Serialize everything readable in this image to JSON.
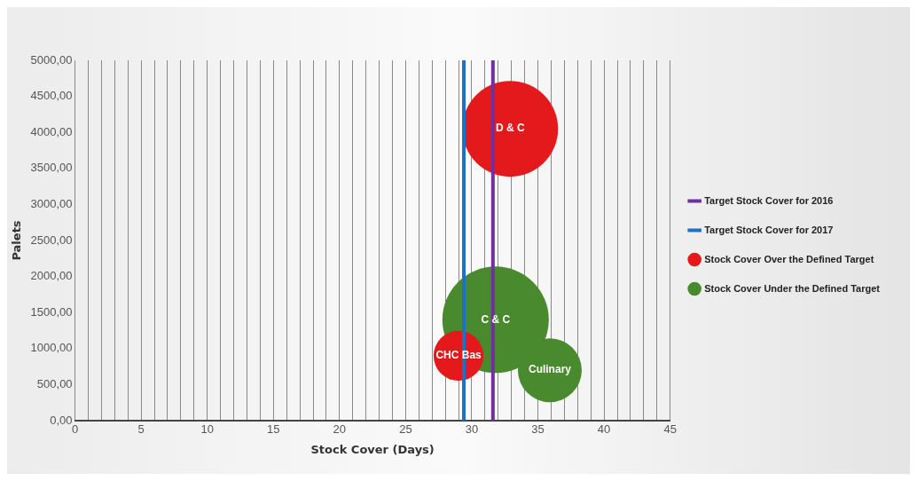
{
  "chart_data": {
    "type": "bubble",
    "xlabel": "Stock Cover (Days)",
    "ylabel": "Palets",
    "series": [
      {
        "name": "Stock Cover Over the Defined Target",
        "color": "#e3191c",
        "x": [
          32.9,
          29.0
        ],
        "values": [
          4050,
          900
        ],
        "sizes": [
          0.81,
          0.22
        ]
      },
      {
        "name": "Stock Cover Under the Defined Target",
        "color": "#4a8a2e",
        "x": [
          31.8,
          35.9
        ],
        "values": [
          1400,
          700
        ],
        "sizes": [
          1,
          0.36
        ]
      },
      {
        "type": "line",
        "name": "Target Stock Cover for 2016",
        "color": "#7030a0",
        "x": [
          31.6,
          31.6
        ],
        "values": [
          0,
          5000
        ]
      },
      {
        "type": "line",
        "name": "Target Stock Cover for 2017",
        "color": "#1a72c4",
        "x": [
          29.4,
          29.4
        ],
        "values": [
          0,
          5000
        ]
      }
    ],
    "annotations": [
      {
        "text": "D & C",
        "x": 32.9,
        "y": 4050
      },
      {
        "text": "C & C",
        "x": 31.8,
        "y": 1400
      },
      {
        "text": "CHC Bas",
        "x": 29.0,
        "y": 900
      },
      {
        "text": "Culinary",
        "x": 35.9,
        "y": 700
      }
    ],
    "xlim": [
      0,
      45
    ],
    "xticks": [
      0,
      {
        "value": 1,
        "label": null
      },
      {
        "value": 2,
        "label": null
      },
      {
        "value": 3,
        "label": null
      },
      {
        "value": 4,
        "label": null
      },
      5,
      {
        "value": 6,
        "label": null
      },
      {
        "value": 7,
        "label": null
      },
      {
        "value": 8,
        "label": null
      },
      {
        "value": 9,
        "label": null
      },
      10,
      {
        "value": 11,
        "label": null
      },
      {
        "value": 12,
        "label": null
      },
      {
        "value": 13,
        "label": null
      },
      {
        "value": 14,
        "label": null
      },
      15,
      {
        "value": 16,
        "label": null
      },
      {
        "value": 17,
        "label": null
      },
      {
        "value": 18,
        "label": null
      },
      {
        "value": 19,
        "label": null
      },
      20,
      {
        "value": 21,
        "label": null
      },
      {
        "value": 22,
        "label": null
      },
      {
        "value": 23,
        "label": null
      },
      {
        "value": 24,
        "label": null
      },
      25,
      {
        "value": 26,
        "label": null
      },
      {
        "value": 27,
        "label": null
      },
      {
        "value": 28,
        "label": null
      },
      {
        "value": 29,
        "label": null
      },
      30,
      {
        "value": 31,
        "label": null
      },
      {
        "value": 32,
        "label": null
      },
      {
        "value": 33,
        "label": null
      },
      {
        "value": 34,
        "label": null
      },
      35,
      {
        "value": 36,
        "label": null
      },
      {
        "value": 37,
        "label": null
      },
      {
        "value": 38,
        "label": null
      },
      {
        "value": 39,
        "label": null
      },
      40,
      {
        "value": 41,
        "label": null
      },
      {
        "value": 42,
        "label": null
      },
      {
        "value": 43,
        "label": null
      },
      {
        "value": 44,
        "label": null
      },
      45
    ],
    "ylim": [
      0,
      5000
    ],
    "yticks": [
      {
        "value": 0,
        "label": "0,00"
      },
      {
        "value": 500,
        "label": "500,00"
      },
      {
        "value": 1000,
        "label": "1000,00"
      },
      {
        "value": 1500,
        "label": "1500,00"
      },
      {
        "value": 2000,
        "label": "2000,00"
      },
      {
        "value": 2500,
        "label": "2500,00"
      },
      {
        "value": 3000,
        "label": "3000,00"
      },
      {
        "value": 3500,
        "label": "3500,00"
      },
      {
        "value": 4000,
        "label": "4000,00"
      },
      {
        "value": 4500,
        "label": "4500,00"
      },
      {
        "value": 5000,
        "label": "5000,00"
      }
    ],
    "grid": "x",
    "legend": "right"
  }
}
